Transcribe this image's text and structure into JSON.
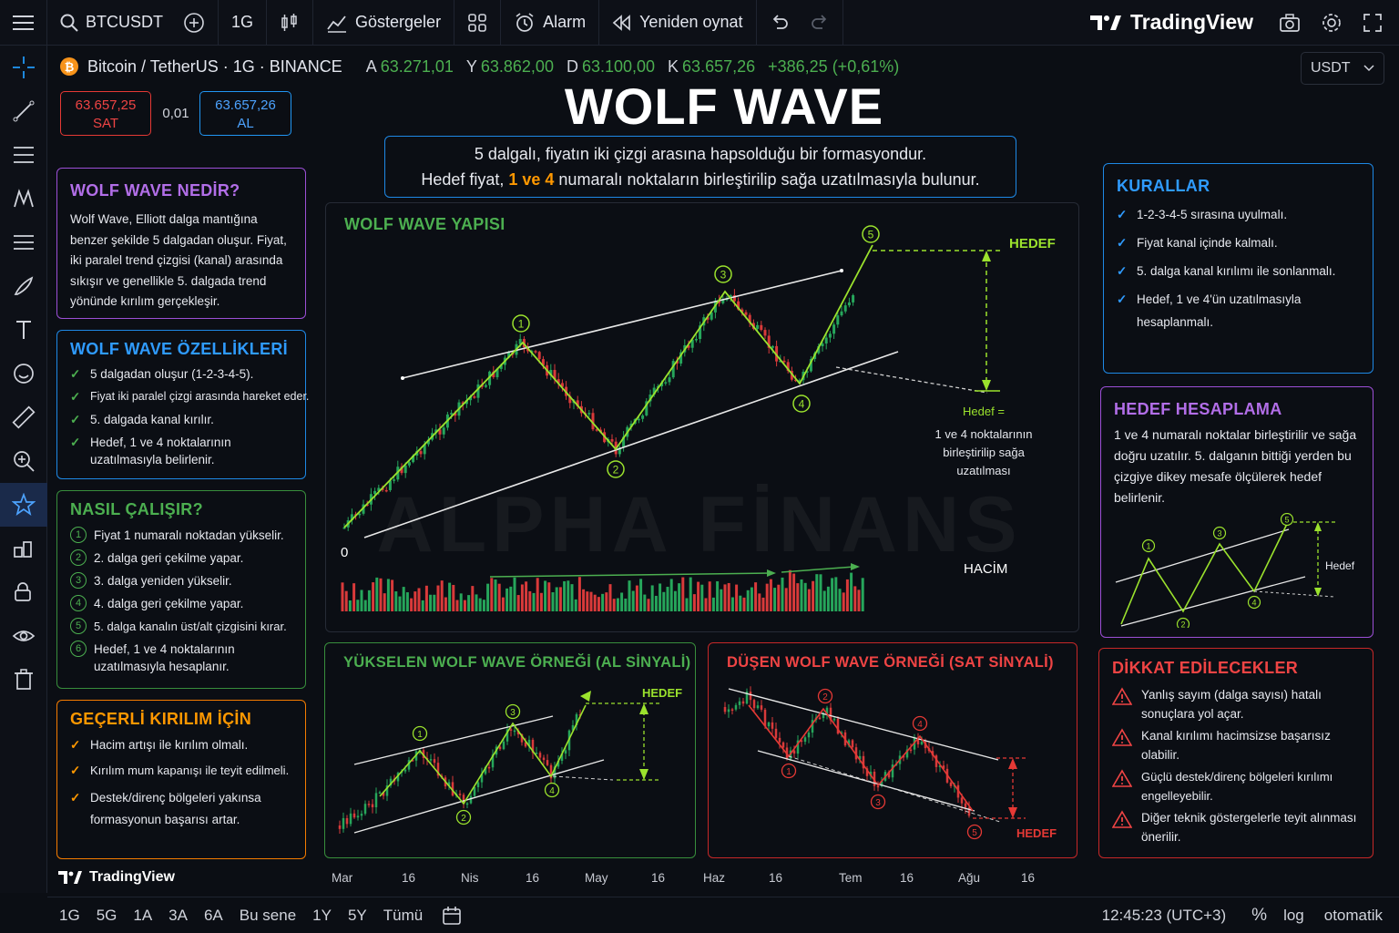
{
  "topbar": {
    "symbol": "BTCUSDT",
    "interval": "1G",
    "indicators": "Göstergeler",
    "alarm": "Alarm",
    "replay": "Yeniden oynat",
    "brand": "TradingView"
  },
  "legend": {
    "pair": "Bitcoin / TetherUS · 1G · BINANCE",
    "o_label": "A",
    "o": "63.271,01",
    "h_label": "Y",
    "h": "63.862,00",
    "l_label": "D",
    "l": "63.100,00",
    "c_label": "K",
    "c": "63.657,26",
    "chg": "+386,25 (+0,61%)"
  },
  "currency": "USDT",
  "trade": {
    "sell_price": "63.657,25",
    "sell_label": "SAT",
    "spread": "0,01",
    "buy_price": "63.657,26",
    "buy_label": "AL"
  },
  "header": {
    "title": "WOLF WAVE",
    "sub1": "5 dalgalı, fiyatın iki çizgi arasına hapsolduğu bir formasyondur.",
    "sub2_a": "Hedef fiyat, ",
    "sub2_b": "1 ve 4",
    "sub2_c": " numaralı noktaların birleştirilip sağa uzatılmasıyla bulunur."
  },
  "what": {
    "title": "WOLF WAVE NEDİR?",
    "text": "Wolf Wave, Elliott dalga mantığına benzer şekilde 5 dalgadan oluşur. Fiyat, iki paralel trend çizgisi (kanal) arasında sıkışır ve genellikle 5. dalgada trend yönünde kırılım gerçekleşir."
  },
  "features": {
    "title": "WOLF WAVE ÖZELLİKLERİ",
    "items": [
      "5 dalgadan oluşur (1-2-3-4-5).",
      "Fiyat iki paralel çizgi arasında hareket eder.",
      "5. dalgada kanal kırılır.",
      "Hedef, 1 ve 4 noktalarının uzatılmasıyla belirlenir."
    ]
  },
  "how": {
    "title": "NASIL ÇALIŞIR?",
    "nums": [
      "1",
      "2",
      "3",
      "4",
      "5",
      "6"
    ],
    "items": [
      "Fiyat 1 numaralı noktadan yükselir.",
      "2. dalga geri çekilme yapar.",
      "3. dalga yeniden yükselir.",
      "4. dalga geri çekilme yapar.",
      "5. dalga kanalın üst/alt çizgisini kırar.",
      "Hedef, 1 ve 4 noktalarının uzatılmasıyla hesaplanır."
    ]
  },
  "valid": {
    "title": "GEÇERLİ KIRILIM İÇİN",
    "items": [
      "Hacim artışı ile kırılım olmalı.",
      "Kırılım mum kapanışı ile teyit edilmeli.",
      "Destek/direnç bölgeleri yakınsa formasyonun başarısı artar."
    ]
  },
  "structure": {
    "title": "WOLF WAVE YAPISI",
    "target": "HEDEF",
    "zero": "0",
    "volume": "HACİM",
    "note_title": "Hedef =",
    "note_l1": "1 ve 4 noktalarının",
    "note_l2": "birleştirilip sağa",
    "note_l3": "uzatılması",
    "watermark": "ALPHA FİNANS",
    "points": [
      "1",
      "2",
      "3",
      "4",
      "5"
    ]
  },
  "rules": {
    "title": "KURALLAR",
    "items": [
      "1-2-3-4-5 sırasına uyulmalı.",
      "Fiyat kanal içinde kalmalı.",
      "5. dalga kanal kırılımı ile sonlanmalı.",
      "Hedef, 1 ve 4'ün uzatılmasıyla hesaplanmalı."
    ]
  },
  "calc": {
    "title": "HEDEF HESAPLAMA",
    "text": "1 ve 4 numaralı noktalar birleştirilir ve sağa doğru uzatılır. 5. dalganın bittiği yerden bu çizgiye dikey mesafe ölçülerek hedef belirlenir.",
    "target": "Hedef"
  },
  "bull": {
    "title": "YÜKSELEN WOLF WAVE ÖRNEĞİ (AL SİNYALİ)",
    "target": "HEDEF"
  },
  "bear": {
    "title": "DÜŞEN WOLF WAVE ÖRNEĞİ (SAT SİNYALİ)",
    "target": "HEDEF"
  },
  "caution": {
    "title": "DİKKAT EDİLECEKLER",
    "items": [
      "Yanlış sayım (dalga sayısı) hatalı sonuçlara yol açar.",
      "Kanal kırılımı hacimsizse başarısız olabilir.",
      "Güçlü destek/direnç bölgeleri kırılımı engelleyebilir.",
      "Diğer teknik göstergelerle teyit alınması önerilir."
    ]
  },
  "xaxis": [
    "Mar",
    "16",
    "Nis",
    "16",
    "May",
    "16",
    "Haz",
    "16",
    "Tem",
    "16",
    "Ağu",
    "16"
  ],
  "brand_bottom": "TradingView",
  "bottombar": {
    "ranges": [
      "1G",
      "5G",
      "1A",
      "3A",
      "6A",
      "Bu sene",
      "1Y",
      "5Y",
      "Tümü"
    ],
    "time": "12:45:23 (UTC+3)",
    "pct": "%",
    "log": "log",
    "auto": "otomatik"
  },
  "colors": {
    "green": "#4caf50",
    "lime": "#9be22d",
    "red": "#e53935",
    "purple": "#b26ee8",
    "blue": "#2196f3",
    "orange": "#ff9800"
  }
}
